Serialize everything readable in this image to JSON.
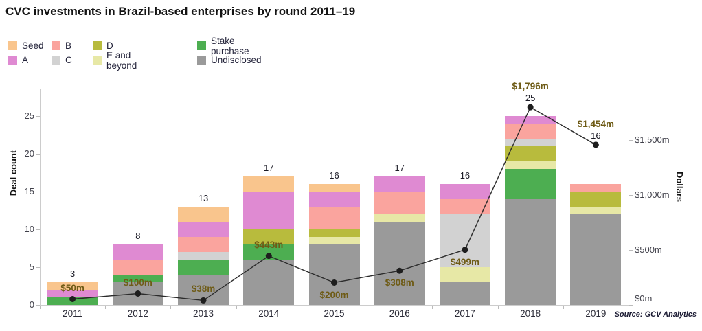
{
  "title": "CVC investments in Brazil-based enterprises by round 2011–19",
  "source": "Source: GCV Analytics",
  "legend": {
    "columns": [
      [
        "Seed",
        "A"
      ],
      [
        "B",
        "C"
      ],
      [
        "D",
        "E and beyond"
      ],
      [
        "Stake purchase",
        "Undisclosed"
      ]
    ]
  },
  "chart_data": {
    "type": "combo: stacked bar + line",
    "categories": [
      "2011",
      "2012",
      "2013",
      "2014",
      "2015",
      "2016",
      "2017",
      "2018",
      "2019"
    ],
    "series": [
      {
        "name": "Undisclosed",
        "color": "#9A9A9A",
        "values": [
          0,
          3,
          4,
          6,
          8,
          11,
          3,
          14,
          12
        ]
      },
      {
        "name": "Stake purchase",
        "color": "#4DAE51",
        "values": [
          1,
          1,
          2,
          2,
          0,
          0,
          0,
          4,
          0
        ]
      },
      {
        "name": "E and beyond",
        "color": "#E7E8A6",
        "values": [
          0,
          0,
          0,
          0,
          1,
          1,
          2,
          1,
          1
        ]
      },
      {
        "name": "D",
        "color": "#B8BB3D",
        "values": [
          0,
          0,
          0,
          2,
          1,
          0,
          0,
          2,
          2
        ]
      },
      {
        "name": "C",
        "color": "#D2D2D2",
        "values": [
          0,
          0,
          1,
          0,
          0,
          0,
          7,
          1,
          0
        ]
      },
      {
        "name": "B",
        "color": "#FAA49E",
        "values": [
          0,
          2,
          2,
          0,
          3,
          3,
          2,
          2,
          1
        ]
      },
      {
        "name": "A",
        "color": "#DF8AD2",
        "values": [
          1,
          2,
          2,
          5,
          2,
          2,
          2,
          1,
          0
        ]
      },
      {
        "name": "Seed",
        "color": "#F9C58D",
        "values": [
          1,
          0,
          2,
          2,
          1,
          0,
          0,
          0,
          0
        ]
      }
    ],
    "totals": [
      3,
      8,
      13,
      17,
      16,
      17,
      16,
      25,
      16
    ],
    "line": {
      "name": "Dollars",
      "values": [
        50,
        100,
        38,
        443,
        200,
        308,
        499,
        1796,
        1454
      ],
      "labels": [
        "$50m",
        "$100m",
        "$38m",
        "$443m",
        "$200m",
        "$308m",
        "$499m",
        "$1,796m",
        "$1,454m"
      ],
      "label_positions": [
        "above",
        "above",
        "above",
        "above",
        "below",
        "below",
        "below",
        "above",
        "below"
      ],
      "color": "#2B2B2B",
      "label_color": "#6E5B16"
    },
    "left_axis": {
      "label": "Deal count",
      "ticks": [
        0,
        5,
        10,
        15,
        20,
        25
      ],
      "max": 25
    },
    "right_axis": {
      "label": "Dollars",
      "ticks": [
        0,
        500,
        1000,
        1500
      ],
      "tick_labels": [
        "$0m",
        "$500m",
        "$1,000m",
        "$1,500m"
      ]
    },
    "grid": false,
    "legend_position": "top-left"
  }
}
